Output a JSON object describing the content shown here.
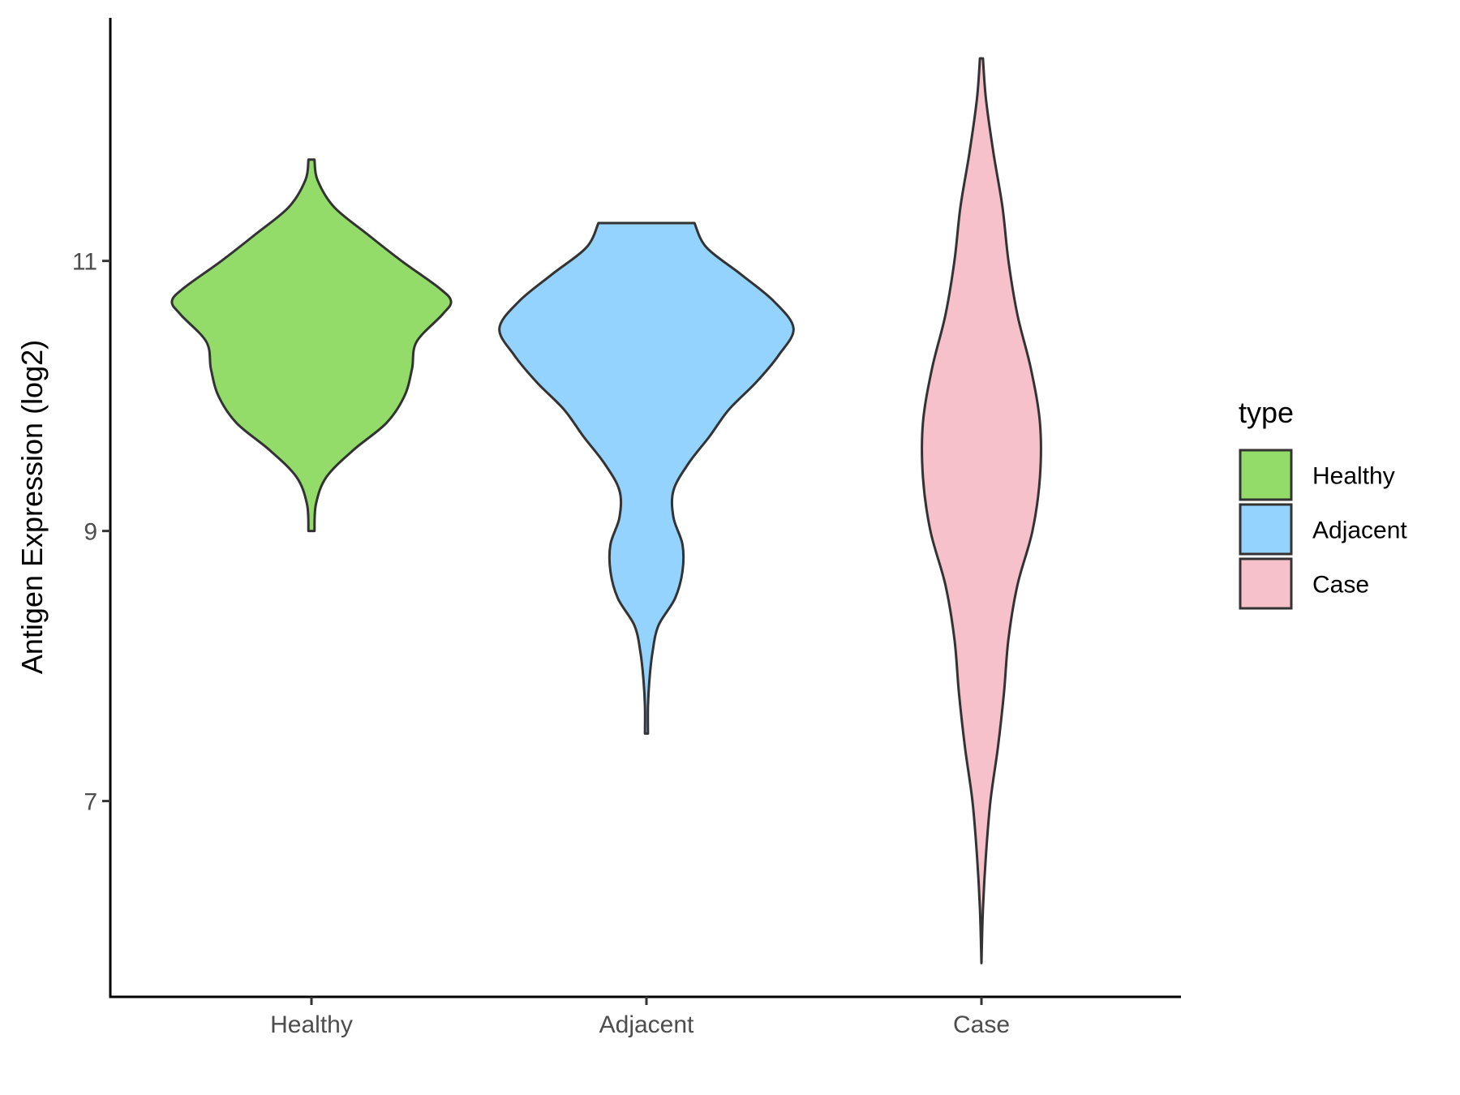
{
  "chart_data": {
    "type": "violin",
    "ylabel": "Antigen Expression (log2)",
    "xlabel": "",
    "categories": [
      "Healthy",
      "Adjacent",
      "Case"
    ],
    "yticks": [
      7,
      9,
      11
    ],
    "ylim": [
      5.55,
      12.8
    ],
    "legend": {
      "title": "type",
      "position": "right",
      "entries": [
        "Healthy",
        "Adjacent",
        "Case"
      ]
    },
    "grid": false,
    "series": [
      {
        "name": "Healthy",
        "color": "#93DC6A",
        "profile": [
          [
            9.0,
            0.02
          ],
          [
            9.2,
            0.03
          ],
          [
            9.4,
            0.1
          ],
          [
            9.6,
            0.28
          ],
          [
            9.8,
            0.5
          ],
          [
            10.0,
            0.62
          ],
          [
            10.2,
            0.67
          ],
          [
            10.4,
            0.7
          ],
          [
            10.6,
            0.87
          ],
          [
            10.7,
            0.93
          ],
          [
            10.8,
            0.85
          ],
          [
            11.0,
            0.6
          ],
          [
            11.2,
            0.37
          ],
          [
            11.4,
            0.15
          ],
          [
            11.6,
            0.04
          ],
          [
            11.75,
            0.02
          ]
        ]
      },
      {
        "name": "Adjacent",
        "color": "#94D3FE",
        "profile": [
          [
            7.5,
            0.01
          ],
          [
            7.7,
            0.01
          ],
          [
            7.9,
            0.02
          ],
          [
            8.1,
            0.04
          ],
          [
            8.3,
            0.08
          ],
          [
            8.5,
            0.19
          ],
          [
            8.7,
            0.24
          ],
          [
            8.9,
            0.24
          ],
          [
            9.1,
            0.18
          ],
          [
            9.3,
            0.18
          ],
          [
            9.5,
            0.28
          ],
          [
            9.7,
            0.42
          ],
          [
            9.9,
            0.55
          ],
          [
            10.1,
            0.73
          ],
          [
            10.3,
            0.88
          ],
          [
            10.5,
            0.98
          ],
          [
            10.7,
            0.85
          ],
          [
            10.9,
            0.63
          ],
          [
            11.1,
            0.4
          ],
          [
            11.28,
            0.32
          ]
        ]
      },
      {
        "name": "Case",
        "color": "#F7C1CC",
        "profile": [
          [
            5.8,
            0.0
          ],
          [
            6.2,
            0.01
          ],
          [
            6.6,
            0.03
          ],
          [
            7.0,
            0.06
          ],
          [
            7.4,
            0.11
          ],
          [
            7.8,
            0.15
          ],
          [
            8.2,
            0.18
          ],
          [
            8.6,
            0.24
          ],
          [
            9.0,
            0.34
          ],
          [
            9.4,
            0.39
          ],
          [
            9.8,
            0.39
          ],
          [
            10.2,
            0.33
          ],
          [
            10.6,
            0.24
          ],
          [
            11.0,
            0.18
          ],
          [
            11.4,
            0.14
          ],
          [
            11.8,
            0.08
          ],
          [
            12.2,
            0.03
          ],
          [
            12.5,
            0.01
          ]
        ]
      }
    ]
  }
}
